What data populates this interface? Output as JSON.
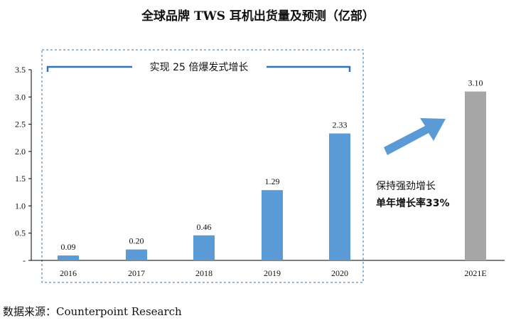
{
  "title": "全球品牌 TWS 耳机出货量及预测（亿部）",
  "source": "数据来源：Counterpoint Research",
  "chart_data": {
    "type": "bar",
    "categories": [
      "2016",
      "2017",
      "2018",
      "2019",
      "2020",
      "2021E"
    ],
    "values": [
      0.09,
      0.2,
      0.46,
      1.29,
      2.33,
      3.1
    ],
    "value_labels": [
      "0.09",
      "0.20",
      "0.46",
      "1.29",
      "2.33",
      "3.10"
    ],
    "ylim": [
      0,
      3.5
    ],
    "yticks": [
      "-",
      "0.5",
      "1.0",
      "1.5",
      "2.0",
      "2.5",
      "3.0",
      "3.5"
    ],
    "grid": false,
    "colors": {
      "actual": "#5B9BD5",
      "forecast": "#A6A6A6",
      "arrow": "#5B9BD5",
      "box": "#2E75B6"
    },
    "annotations": {
      "box_label": "实现 25 倍爆发式增长",
      "growth_line1": "保持强劲增长",
      "growth_line2": "单年增长率33%"
    }
  }
}
